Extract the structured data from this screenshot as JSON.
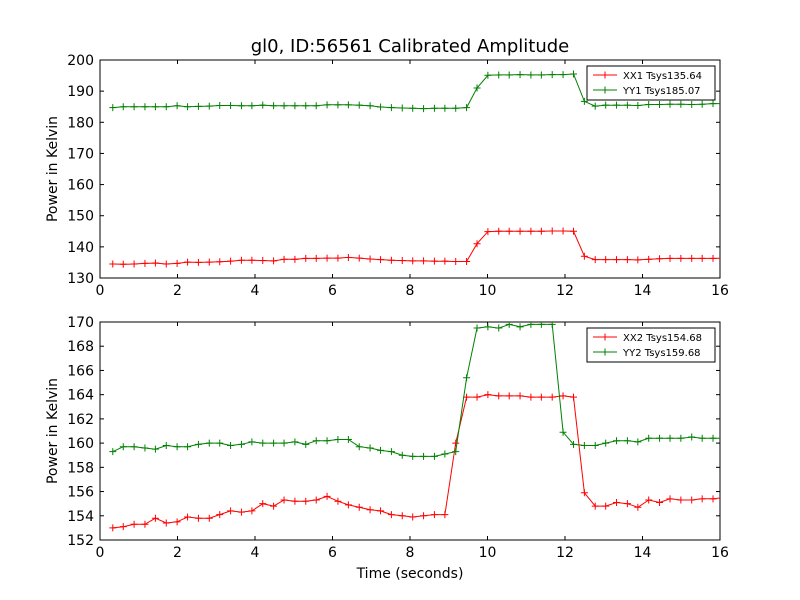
{
  "colors": {
    "red": "#ff0000",
    "green": "#008000"
  },
  "chart_data": [
    {
      "type": "line",
      "title": "gl0, ID:56561 Calibrated Amplitude",
      "xlabel": "",
      "ylabel": "Power in Kelvin",
      "xlim": [
        0,
        16
      ],
      "ylim": [
        130,
        200
      ],
      "xticks": [
        "0",
        "2",
        "4",
        "6",
        "8",
        "10",
        "12",
        "14",
        "16"
      ],
      "yticks": [
        "130",
        "140",
        "150",
        "160",
        "170",
        "180",
        "190",
        "200"
      ],
      "grid": false,
      "legend_position": "top-right",
      "x": [
        0.33,
        0.6,
        0.88,
        1.16,
        1.43,
        1.71,
        1.99,
        2.26,
        2.54,
        2.82,
        3.09,
        3.37,
        3.65,
        3.92,
        4.2,
        4.48,
        4.75,
        5.03,
        5.31,
        5.58,
        5.86,
        6.14,
        6.41,
        6.69,
        6.97,
        7.24,
        7.52,
        7.8,
        8.07,
        8.35,
        8.63,
        8.9,
        9.18,
        9.46,
        9.73,
        10.01,
        10.29,
        10.56,
        10.84,
        11.12,
        11.39,
        11.67,
        11.95,
        12.22,
        12.5,
        12.78,
        13.05,
        13.33,
        13.61,
        13.88,
        14.16,
        14.44,
        14.71,
        14.99,
        15.27,
        15.54,
        15.82,
        16.1
      ],
      "series": [
        {
          "name": "XX1 Tsys135.64",
          "color": "#ff0000",
          "values": [
            134.5,
            134.4,
            134.5,
            134.7,
            134.8,
            134.5,
            134.7,
            135.1,
            135.0,
            135.1,
            135.2,
            135.4,
            135.7,
            135.7,
            135.6,
            135.5,
            136.0,
            136.0,
            136.3,
            136.3,
            136.4,
            136.4,
            136.6,
            136.4,
            136.1,
            135.9,
            135.7,
            135.6,
            135.5,
            135.5,
            135.4,
            135.4,
            135.3,
            135.3,
            141.0,
            144.9,
            145.0,
            145.0,
            145.0,
            145.0,
            145.0,
            145.1,
            145.1,
            145.0,
            137.0,
            135.9,
            135.9,
            135.9,
            135.9,
            135.8,
            136.0,
            136.2,
            136.3,
            136.3,
            136.3,
            136.3,
            136.3,
            136.4
          ]
        },
        {
          "name": "YY1 Tsys185.07",
          "color": "#008000",
          "values": [
            184.7,
            185.0,
            185.0,
            185.0,
            185.0,
            185.0,
            185.3,
            185.0,
            185.1,
            185.2,
            185.4,
            185.4,
            185.3,
            185.3,
            185.5,
            185.3,
            185.3,
            185.3,
            185.3,
            185.3,
            185.6,
            185.6,
            185.6,
            185.5,
            185.3,
            184.9,
            184.7,
            184.6,
            184.5,
            184.4,
            184.5,
            184.5,
            184.5,
            184.7,
            191.0,
            195.1,
            195.2,
            195.2,
            195.3,
            195.2,
            195.2,
            195.3,
            195.3,
            195.5,
            186.7,
            185.2,
            185.5,
            185.5,
            185.5,
            185.4,
            185.7,
            185.7,
            185.8,
            185.8,
            185.7,
            185.8,
            186.0,
            186.0
          ]
        }
      ]
    },
    {
      "type": "line",
      "title": "",
      "xlabel": "Time (seconds)",
      "ylabel": "Power in Kelvin",
      "xlim": [
        0,
        16
      ],
      "ylim": [
        152,
        170
      ],
      "xticks": [
        "0",
        "2",
        "4",
        "6",
        "8",
        "10",
        "12",
        "14",
        "16"
      ],
      "yticks": [
        "152",
        "154",
        "156",
        "158",
        "160",
        "162",
        "164",
        "166",
        "168",
        "170"
      ],
      "grid": false,
      "legend_position": "top-right",
      "x": [
        0.33,
        0.6,
        0.88,
        1.16,
        1.43,
        1.71,
        1.99,
        2.26,
        2.54,
        2.82,
        3.09,
        3.37,
        3.65,
        3.92,
        4.2,
        4.48,
        4.75,
        5.03,
        5.31,
        5.58,
        5.86,
        6.14,
        6.41,
        6.69,
        6.97,
        7.24,
        7.52,
        7.8,
        8.07,
        8.35,
        8.63,
        8.9,
        9.18,
        9.46,
        9.73,
        10.01,
        10.29,
        10.56,
        10.84,
        11.12,
        11.39,
        11.67,
        11.95,
        12.22,
        12.5,
        12.78,
        13.05,
        13.33,
        13.61,
        13.88,
        14.16,
        14.44,
        14.71,
        14.99,
        15.27,
        15.54,
        15.82,
        16.1
      ],
      "series": [
        {
          "name": "XX2 Tsys154.68",
          "color": "#ff0000",
          "values": [
            153.0,
            153.1,
            153.3,
            153.3,
            153.8,
            153.4,
            153.5,
            153.9,
            153.8,
            153.8,
            154.1,
            154.4,
            154.3,
            154.4,
            155.0,
            154.8,
            155.3,
            155.2,
            155.2,
            155.3,
            155.6,
            155.2,
            154.9,
            154.7,
            154.5,
            154.4,
            154.1,
            154.0,
            153.9,
            154.0,
            154.1,
            154.1,
            160.0,
            163.8,
            163.8,
            164.0,
            163.9,
            163.9,
            163.9,
            163.8,
            163.8,
            163.8,
            163.9,
            163.8,
            155.9,
            154.8,
            154.8,
            155.1,
            155.0,
            154.7,
            155.3,
            155.1,
            155.4,
            155.3,
            155.3,
            155.4,
            155.4,
            155.5
          ]
        },
        {
          "name": "YY2 Tsys159.68",
          "color": "#008000",
          "values": [
            159.3,
            159.7,
            159.7,
            159.6,
            159.5,
            159.8,
            159.7,
            159.7,
            159.9,
            160.0,
            160.0,
            159.8,
            159.9,
            160.1,
            160.0,
            160.0,
            160.0,
            160.1,
            159.9,
            160.2,
            160.2,
            160.3,
            160.3,
            159.7,
            159.6,
            159.4,
            159.3,
            159.0,
            158.9,
            158.9,
            158.9,
            159.1,
            159.3,
            165.4,
            169.5,
            169.6,
            169.5,
            169.8,
            169.6,
            169.8,
            169.8,
            169.8,
            160.9,
            159.9,
            159.8,
            159.8,
            160.0,
            160.2,
            160.2,
            160.1,
            160.4,
            160.4,
            160.4,
            160.4,
            160.5,
            160.4,
            160.4,
            160.4
          ]
        }
      ]
    }
  ]
}
